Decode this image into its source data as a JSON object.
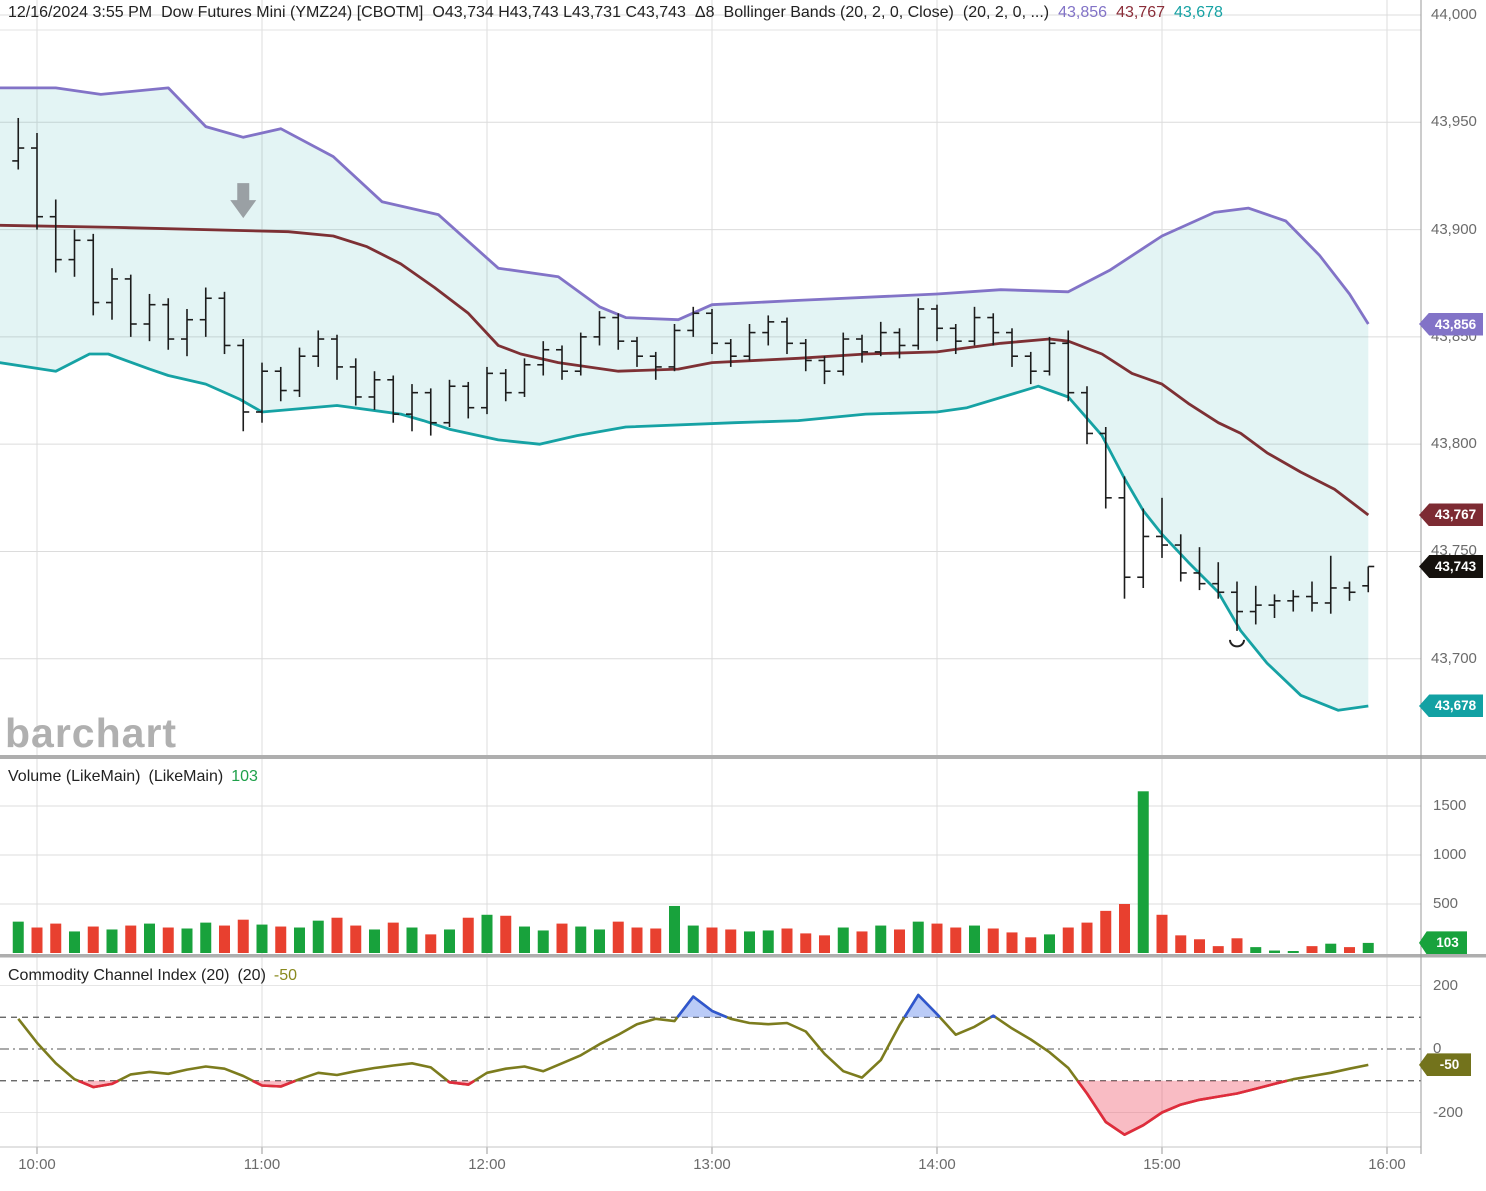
{
  "header": {
    "datetime": "12/16/2024 3:55 PM",
    "symbol": "Dow Futures Mini (YMZ24) [CBOTM]",
    "ohlc": "O43,734 H43,743 L43,731 C43,743",
    "delta": "Δ8",
    "study": "Bollinger Bands (20, 2, 0, Close)",
    "study_params": "(20, 2, 0, ...)",
    "band_values": {
      "upper": "43,856",
      "middle": "43,767",
      "lower": "43,678"
    }
  },
  "watermark": "barchart",
  "volume_panel": {
    "title": "Volume (LikeMain)",
    "title_params": "(LikeMain)",
    "last_value": "103"
  },
  "cci_panel": {
    "title": "Commodity Channel Index (20)",
    "title_params": "(20)",
    "last_value": "-50"
  },
  "colors": {
    "band_upper": "#8273c7",
    "band_middle": "#7d3034",
    "band_lower": "#16a2a4",
    "band_fill": "rgba(23,162,162,0.12)",
    "ohlc_bar": "#1c1c1c",
    "vol_up": "#18a23c",
    "vol_down": "#e8402f",
    "cci_line": "#7c7c1e",
    "cci_below": "#e02b3d",
    "cci_below_fill": "rgba(238,80,100,0.38)",
    "cci_above": "#2f56cf",
    "cci_above_fill": "rgba(130,160,240,0.55)",
    "grid": "#dcdcdc",
    "grid_light": "#e6e6e6",
    "axis_text": "#6b6b6b",
    "separator": "#aeaeae",
    "arrow": "#9aa0a4"
  },
  "badges": [
    {
      "id": "upper-band",
      "text": "43,856",
      "color": "#8273c7",
      "panel": "main",
      "value": 43856
    },
    {
      "id": "middle-band",
      "text": "43,767",
      "color": "#7d2b33",
      "panel": "main",
      "value": 43767
    },
    {
      "id": "last-close",
      "text": "43,743",
      "color": "#15110d",
      "panel": "main",
      "value": 43743
    },
    {
      "id": "lower-band",
      "text": "43,678",
      "color": "#12a1a3",
      "panel": "main",
      "value": 43678
    },
    {
      "id": "volume",
      "text": "103",
      "color": "#18a23c",
      "panel": "volume",
      "value": 103
    },
    {
      "id": "cci",
      "text": "-50",
      "color": "#73731c",
      "panel": "cci",
      "value": -50
    }
  ],
  "axes": {
    "price_ticks": [
      44000,
      43950,
      43900,
      43850,
      43800,
      43750,
      43700
    ],
    "volume_ticks": [
      1500,
      1000,
      500
    ],
    "cci_ticks": [
      200,
      0,
      -200
    ],
    "cci_dashed_levels": [
      100,
      -100
    ],
    "time_ticks": [
      "10:00",
      "11:00",
      "12:00",
      "13:00",
      "14:00",
      "15:00",
      "16:00"
    ]
  },
  "chart_data": [
    {
      "type": "ohlc",
      "name": "Dow Futures Mini (YMZ24) 5-minute bars",
      "start_time": "09:55",
      "interval_min": 5,
      "ylim": [
        43650,
        44010
      ],
      "open": [
        43932,
        43938,
        43906,
        43886,
        43895,
        43866,
        43877,
        43856,
        43865,
        43849,
        43858,
        43868,
        43846,
        43815,
        43834,
        43825,
        43841,
        43849,
        43836,
        43822,
        43830,
        43814,
        43824,
        43810,
        43827,
        43817,
        43833,
        43824,
        43837,
        43844,
        43834,
        43850,
        43859,
        43848,
        43841,
        43836,
        43853,
        43861,
        43847,
        43841,
        43852,
        43857,
        43847,
        43839,
        43834,
        43849,
        43843,
        43852,
        43846,
        43863,
        43854,
        43848,
        43859,
        43852,
        43841,
        43834,
        43847,
        43824,
        43805,
        43775,
        43738,
        43757,
        43753,
        43740,
        43735,
        43731,
        43722,
        43725,
        43727,
        43729,
        43726,
        43733,
        43734
      ],
      "high": [
        43952,
        43945,
        43914,
        43900,
        43898,
        43882,
        43879,
        43870,
        43868,
        43863,
        43873,
        43871,
        43849,
        43838,
        43836,
        43845,
        43853,
        43851,
        43840,
        43834,
        43832,
        43828,
        43826,
        43830,
        43829,
        43836,
        43835,
        43840,
        43848,
        43846,
        43852,
        43862,
        43861,
        43850,
        43843,
        43856,
        43864,
        43863,
        43849,
        43856,
        43860,
        43859,
        43849,
        43841,
        43852,
        43851,
        43857,
        43854,
        43868,
        43865,
        43856,
        43864,
        43861,
        43854,
        43843,
        43850,
        43853,
        43827,
        43808,
        43785,
        43770,
        43775,
        43758,
        43752,
        43745,
        43736,
        43734,
        43730,
        43732,
        43736,
        43748,
        43736,
        43743
      ],
      "low": [
        43928,
        43900,
        43880,
        43878,
        43860,
        43858,
        43850,
        43848,
        43844,
        43841,
        43850,
        43842,
        43806,
        43810,
        43820,
        43822,
        43836,
        43830,
        43818,
        43816,
        43810,
        43806,
        43804,
        43808,
        43812,
        43814,
        43820,
        43822,
        43832,
        43830,
        43832,
        43846,
        43844,
        43836,
        43830,
        43834,
        43850,
        43842,
        43836,
        43839,
        43846,
        43842,
        43834,
        43828,
        43832,
        43838,
        43841,
        43840,
        43844,
        43848,
        43842,
        43846,
        43846,
        43836,
        43828,
        43832,
        43820,
        43800,
        43770,
        43728,
        43733,
        43747,
        43736,
        43732,
        43728,
        43713,
        43716,
        43719,
        43722,
        43722,
        43721,
        43727,
        43731
      ],
      "close": [
        43938,
        43906,
        43886,
        43895,
        43866,
        43877,
        43856,
        43865,
        43849,
        43858,
        43868,
        43846,
        43815,
        43834,
        43825,
        43841,
        43849,
        43836,
        43822,
        43830,
        43814,
        43824,
        43810,
        43827,
        43817,
        43833,
        43824,
        43837,
        43844,
        43834,
        43850,
        43859,
        43848,
        43841,
        43836,
        43853,
        43861,
        43847,
        43841,
        43852,
        43857,
        43847,
        43839,
        43834,
        43849,
        43843,
        43852,
        43846,
        43863,
        43854,
        43848,
        43859,
        43852,
        43841,
        43834,
        43847,
        43824,
        43805,
        43775,
        43738,
        43757,
        43753,
        43740,
        43735,
        43731,
        43722,
        43725,
        43727,
        43729,
        43726,
        43733,
        43731,
        43743
      ],
      "bollinger_upper": [
        [
          -10,
          43966
        ],
        [
          5,
          43966
        ],
        [
          17,
          43963
        ],
        [
          35,
          43966
        ],
        [
          45,
          43948
        ],
        [
          55,
          43943
        ],
        [
          65,
          43947
        ],
        [
          79,
          43934
        ],
        [
          92,
          43913
        ],
        [
          107,
          43907
        ],
        [
          123,
          43882
        ],
        [
          139,
          43878
        ],
        [
          150,
          43864
        ],
        [
          157,
          43859
        ],
        [
          171,
          43858
        ],
        [
          180,
          43865
        ],
        [
          203,
          43867
        ],
        [
          240,
          43870
        ],
        [
          257,
          43872
        ],
        [
          275,
          43871
        ],
        [
          286,
          43881
        ],
        [
          300,
          43897
        ],
        [
          314,
          43908
        ],
        [
          323,
          43910
        ],
        [
          333,
          43904
        ],
        [
          342,
          43888
        ],
        [
          350,
          43870
        ],
        [
          355,
          43856
        ]
      ],
      "bollinger_middle": [
        [
          -10,
          43902
        ],
        [
          21,
          43901
        ],
        [
          67,
          43899
        ],
        [
          79,
          43897
        ],
        [
          88,
          43892
        ],
        [
          97,
          43884
        ],
        [
          106,
          43873
        ],
        [
          115,
          43861
        ],
        [
          123,
          43846
        ],
        [
          129,
          43842
        ],
        [
          139,
          43838
        ],
        [
          155,
          43834
        ],
        [
          171,
          43835
        ],
        [
          180,
          43838
        ],
        [
          203,
          43840
        ],
        [
          221,
          43842
        ],
        [
          240,
          43843
        ],
        [
          257,
          43847
        ],
        [
          270,
          43849
        ],
        [
          275,
          43848
        ],
        [
          284,
          43842
        ],
        [
          292,
          43833
        ],
        [
          300,
          43828
        ],
        [
          307,
          43819
        ],
        [
          315,
          43810
        ],
        [
          321,
          43805
        ],
        [
          328,
          43796
        ],
        [
          337,
          43787
        ],
        [
          346,
          43779
        ],
        [
          355,
          43767
        ]
      ],
      "bollinger_lower": [
        [
          -10,
          43838
        ],
        [
          5,
          43834
        ],
        [
          14,
          43842
        ],
        [
          19,
          43842
        ],
        [
          30,
          43835
        ],
        [
          35,
          43832
        ],
        [
          45,
          43828
        ],
        [
          54,
          43821
        ],
        [
          60,
          43815
        ],
        [
          80,
          43818
        ],
        [
          97,
          43814
        ],
        [
          103,
          43811
        ],
        [
          110,
          43807
        ],
        [
          123,
          43802
        ],
        [
          134,
          43800
        ],
        [
          144,
          43804
        ],
        [
          157,
          43808
        ],
        [
          186,
          43810
        ],
        [
          203,
          43811
        ],
        [
          221,
          43814
        ],
        [
          240,
          43815
        ],
        [
          248,
          43817
        ],
        [
          267,
          43827
        ],
        [
          275,
          43822
        ],
        [
          279,
          43814
        ],
        [
          284,
          43804
        ],
        [
          290,
          43784
        ],
        [
          295,
          43769
        ],
        [
          300,
          43758
        ],
        [
          307,
          43745
        ],
        [
          315,
          43731
        ],
        [
          321,
          43713
        ],
        [
          328,
          43698
        ],
        [
          337,
          43683
        ],
        [
          347,
          43676
        ],
        [
          355,
          43678
        ]
      ],
      "annotations": [
        {
          "type": "down-arrow",
          "time": "10:55",
          "price": 43910
        },
        {
          "type": "low-marker",
          "time": "15:20",
          "price": 43713
        }
      ]
    },
    {
      "type": "bar",
      "name": "Volume (LikeMain)",
      "ylim": [
        0,
        1950
      ],
      "values": [
        320,
        260,
        300,
        220,
        270,
        240,
        280,
        300,
        260,
        250,
        310,
        280,
        340,
        290,
        270,
        260,
        330,
        360,
        280,
        240,
        310,
        260,
        190,
        240,
        360,
        390,
        380,
        270,
        230,
        300,
        270,
        240,
        320,
        260,
        250,
        480,
        280,
        260,
        240,
        220,
        230,
        250,
        200,
        180,
        260,
        220,
        280,
        240,
        320,
        300,
        260,
        280,
        250,
        210,
        160,
        190,
        260,
        310,
        430,
        500,
        1650,
        390,
        180,
        140,
        70,
        150,
        60,
        25,
        20,
        70,
        95,
        60,
        103
      ]
    },
    {
      "type": "line",
      "name": "Commodity Channel Index (20)",
      "ylim": [
        -300,
        230
      ],
      "upper_threshold": 100,
      "lower_threshold": -100,
      "values": [
        95,
        20,
        -45,
        -95,
        -120,
        -110,
        -80,
        -72,
        -78,
        -65,
        -55,
        -62,
        -85,
        -115,
        -118,
        -95,
        -75,
        -82,
        -70,
        -60,
        -52,
        -45,
        -58,
        -105,
        -112,
        -75,
        -62,
        -55,
        -70,
        -45,
        -20,
        15,
        45,
        78,
        95,
        88,
        165,
        120,
        95,
        82,
        78,
        82,
        55,
        -15,
        -70,
        -90,
        -35,
        75,
        170,
        110,
        45,
        70,
        105,
        65,
        30,
        -10,
        -60,
        -140,
        -230,
        -270,
        -240,
        -200,
        -175,
        -160,
        -150,
        -140,
        -125,
        -110,
        -95,
        -85,
        -75,
        -62,
        -50
      ]
    }
  ]
}
